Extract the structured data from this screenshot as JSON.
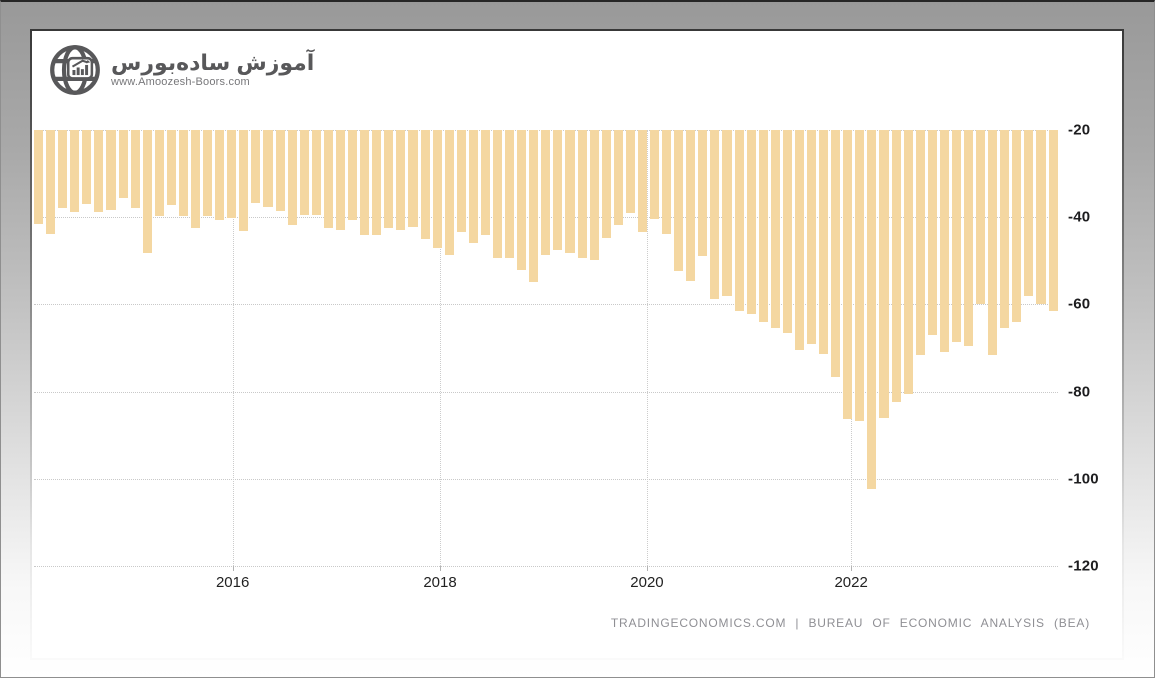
{
  "branding": {
    "title_fa": "آموزش ساده‌بورس",
    "website": "www.Amoozesh-Boors.com",
    "logo_color": "#58585a"
  },
  "footer": {
    "attribution": "TRADINGECONOMICS.COM | BUREAU OF ECONOMIC ANALYSIS (BEA)"
  },
  "chart_data": {
    "type": "bar",
    "title": "",
    "legend": "none",
    "grid": "dotted",
    "background": "#ffffff",
    "bar_color": "#f4d7a1",
    "grid_color": "#c9c9c9",
    "ylim": [
      -120,
      -20
    ],
    "y_ticks": [
      -20,
      -40,
      -60,
      -80,
      -100,
      -120
    ],
    "x_ticks": [
      {
        "label": "2016",
        "pos": 0.194
      },
      {
        "label": "2018",
        "pos": 0.3965
      },
      {
        "label": "2020",
        "pos": 0.5986
      },
      {
        "label": "2022",
        "pos": 0.798
      }
    ],
    "values": [
      -41.5,
      -43.8,
      -38.0,
      -38.9,
      -37.0,
      -38.9,
      -38.4,
      -35.6,
      -37.8,
      -48.1,
      -39.7,
      -37.2,
      -39.7,
      -42.4,
      -39.7,
      -40.7,
      -40.1,
      -43.2,
      -36.8,
      -37.6,
      -38.6,
      -41.8,
      -39.4,
      -39.5,
      -42.4,
      -43.0,
      -40.7,
      -44.0,
      -44.0,
      -42.4,
      -43.0,
      -42.3,
      -45.1,
      -47.0,
      -48.6,
      -43.3,
      -46.0,
      -44.0,
      -49.4,
      -49.4,
      -52.1,
      -54.8,
      -48.6,
      -47.5,
      -48.3,
      -49.4,
      -49.8,
      -44.8,
      -41.8,
      -39.1,
      -43.5,
      -40.3,
      -43.8,
      -52.3,
      -54.6,
      -48.8,
      -58.8,
      -58.0,
      -61.5,
      -62.1,
      -64.0,
      -65.5,
      -66.5,
      -70.5,
      -69.0,
      -71.4,
      -76.7,
      -86.3,
      -86.7,
      -102.3,
      -86.1,
      -82.3,
      -80.5,
      -71.5,
      -67.1,
      -70.9,
      -68.6,
      -69.6,
      -59.8,
      -71.7,
      -65.5,
      -64.0,
      -58.0,
      -59.8,
      -61.5
    ]
  }
}
